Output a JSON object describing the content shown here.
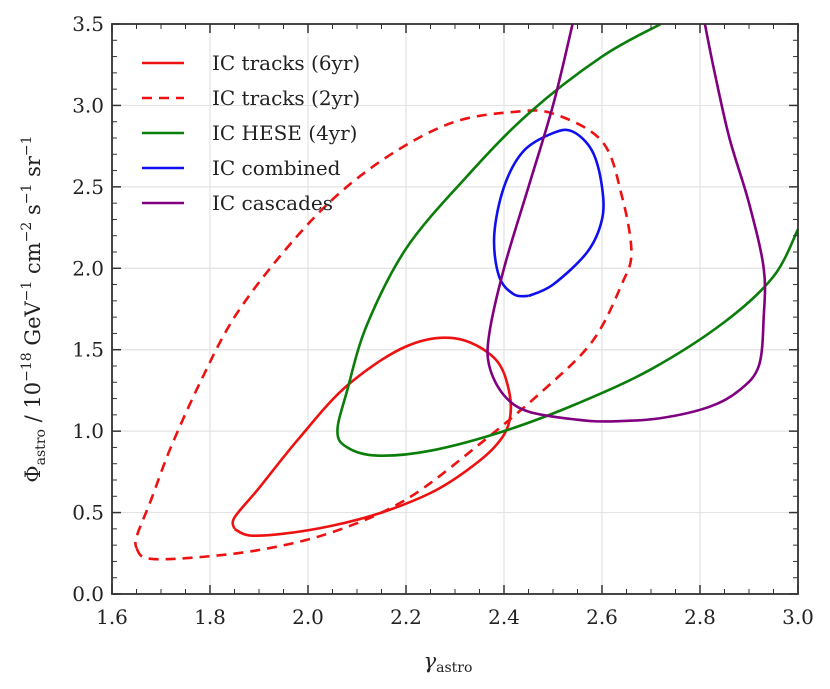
{
  "chart_data": {
    "type": "line",
    "title": "",
    "xlabel": "γ",
    "xlabel_sub": "astro",
    "ylabel": {
      "symbol": "Φ",
      "symbol_sub": "astro",
      "slash": " / 10",
      "exp1": "−18",
      "unit1": " GeV",
      "exp2": "−1",
      "unit2": " cm",
      "exp3": "−2",
      "unit3": " s",
      "exp4": "−1",
      "unit4": " sr",
      "exp5": "−1"
    },
    "xlim": [
      1.6,
      3.0
    ],
    "ylim": [
      0.0,
      3.5
    ],
    "x_ticks": [
      "1.6",
      "1.8",
      "2.0",
      "2.2",
      "2.4",
      "2.6",
      "2.8",
      "3.0"
    ],
    "y_ticks": [
      "0.0",
      "0.5",
      "1.0",
      "1.5",
      "2.0",
      "2.5",
      "3.0",
      "3.5"
    ],
    "grid": true,
    "legend_position": "top-left",
    "series": [
      {
        "name": "IC tracks (6yr)",
        "color": "#ee1111",
        "dash": "solid",
        "points": [
          [
            1.85,
            0.4
          ],
          [
            1.88,
            0.36
          ],
          [
            1.95,
            0.37
          ],
          [
            2.05,
            0.42
          ],
          [
            2.15,
            0.5
          ],
          [
            2.25,
            0.62
          ],
          [
            2.32,
            0.75
          ],
          [
            2.38,
            0.9
          ],
          [
            2.41,
            1.05
          ],
          [
            2.41,
            1.25
          ],
          [
            2.38,
            1.45
          ],
          [
            2.3,
            1.57
          ],
          [
            2.2,
            1.52
          ],
          [
            2.08,
            1.28
          ],
          [
            1.98,
            0.95
          ],
          [
            1.9,
            0.65
          ],
          [
            1.85,
            0.47
          ],
          [
            1.85,
            0.4
          ]
        ]
      },
      {
        "name": "IC tracks (2yr)",
        "color": "#ee1111",
        "dash": "dashed",
        "points": [
          [
            1.65,
            0.28
          ],
          [
            1.67,
            0.22
          ],
          [
            1.75,
            0.22
          ],
          [
            1.9,
            0.27
          ],
          [
            2.05,
            0.38
          ],
          [
            2.2,
            0.58
          ],
          [
            2.35,
            0.92
          ],
          [
            2.48,
            1.25
          ],
          [
            2.58,
            1.55
          ],
          [
            2.64,
            1.9
          ],
          [
            2.66,
            2.1
          ],
          [
            2.64,
            2.45
          ],
          [
            2.6,
            2.78
          ],
          [
            2.5,
            2.95
          ],
          [
            2.42,
            2.96
          ],
          [
            2.3,
            2.9
          ],
          [
            2.18,
            2.72
          ],
          [
            2.06,
            2.45
          ],
          [
            1.95,
            2.1
          ],
          [
            1.85,
            1.7
          ],
          [
            1.78,
            1.3
          ],
          [
            1.72,
            0.9
          ],
          [
            1.68,
            0.58
          ],
          [
            1.65,
            0.35
          ],
          [
            1.65,
            0.28
          ]
        ]
      },
      {
        "name": "IC HESE (4yr)",
        "color": "#0a7d0a",
        "dash": "solid",
        "points": [
          [
            2.72,
            3.5
          ],
          [
            2.6,
            3.3
          ],
          [
            2.45,
            2.95
          ],
          [
            2.32,
            2.55
          ],
          [
            2.2,
            2.12
          ],
          [
            2.12,
            1.65
          ],
          [
            2.08,
            1.25
          ],
          [
            2.06,
            1.0
          ],
          [
            2.08,
            0.9
          ],
          [
            2.14,
            0.85
          ],
          [
            2.25,
            0.88
          ],
          [
            2.4,
            1.0
          ],
          [
            2.55,
            1.17
          ],
          [
            2.7,
            1.38
          ],
          [
            2.85,
            1.67
          ],
          [
            2.95,
            1.95
          ],
          [
            3.0,
            2.24
          ]
        ]
      },
      {
        "name": "IC combined",
        "color": "#1010ee",
        "dash": "solid",
        "points": [
          [
            2.45,
            1.83
          ],
          [
            2.42,
            1.84
          ],
          [
            2.39,
            1.95
          ],
          [
            2.38,
            2.2
          ],
          [
            2.4,
            2.5
          ],
          [
            2.44,
            2.72
          ],
          [
            2.5,
            2.83
          ],
          [
            2.54,
            2.84
          ],
          [
            2.58,
            2.72
          ],
          [
            2.6,
            2.5
          ],
          [
            2.6,
            2.3
          ],
          [
            2.57,
            2.1
          ],
          [
            2.5,
            1.9
          ],
          [
            2.45,
            1.83
          ]
        ]
      },
      {
        "name": "IC cascades",
        "color": "#800080",
        "dash": "solid",
        "points": [
          [
            2.54,
            3.5
          ],
          [
            2.5,
            3.0
          ],
          [
            2.45,
            2.5
          ],
          [
            2.4,
            2.0
          ],
          [
            2.37,
            1.6
          ],
          [
            2.37,
            1.4
          ],
          [
            2.4,
            1.22
          ],
          [
            2.45,
            1.12
          ],
          [
            2.55,
            1.07
          ],
          [
            2.62,
            1.06
          ],
          [
            2.72,
            1.08
          ],
          [
            2.82,
            1.15
          ],
          [
            2.88,
            1.25
          ],
          [
            2.92,
            1.4
          ],
          [
            2.93,
            1.7
          ],
          [
            2.93,
            2.0
          ],
          [
            2.9,
            2.4
          ],
          [
            2.86,
            2.8
          ],
          [
            2.83,
            3.2
          ],
          [
            2.81,
            3.5
          ]
        ]
      }
    ]
  }
}
